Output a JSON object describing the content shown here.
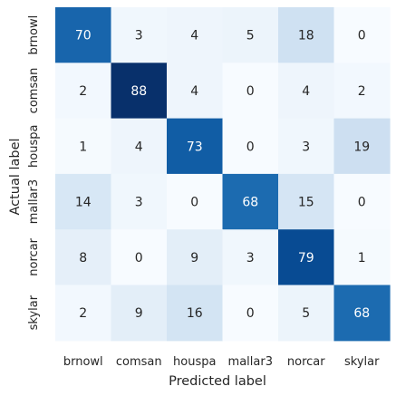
{
  "chart_data": {
    "type": "heatmap",
    "xlabel": "Predicted label",
    "ylabel": "Actual label",
    "x_categories": [
      "brnowl",
      "comsan",
      "houspa",
      "mallar3",
      "norcar",
      "skylar"
    ],
    "y_categories": [
      "brnowl",
      "comsan",
      "houspa",
      "mallar3",
      "norcar",
      "skylar"
    ],
    "values": [
      [
        70,
        3,
        4,
        5,
        18,
        0
      ],
      [
        2,
        88,
        4,
        0,
        4,
        2
      ],
      [
        1,
        4,
        73,
        0,
        3,
        19
      ],
      [
        14,
        3,
        0,
        68,
        15,
        0
      ],
      [
        8,
        0,
        9,
        3,
        79,
        1
      ],
      [
        2,
        9,
        16,
        0,
        5,
        68
      ]
    ],
    "colormap": "Blues",
    "vmin": 0,
    "vmax": 88,
    "annotations": true,
    "colorbar": false,
    "grid": false
  }
}
